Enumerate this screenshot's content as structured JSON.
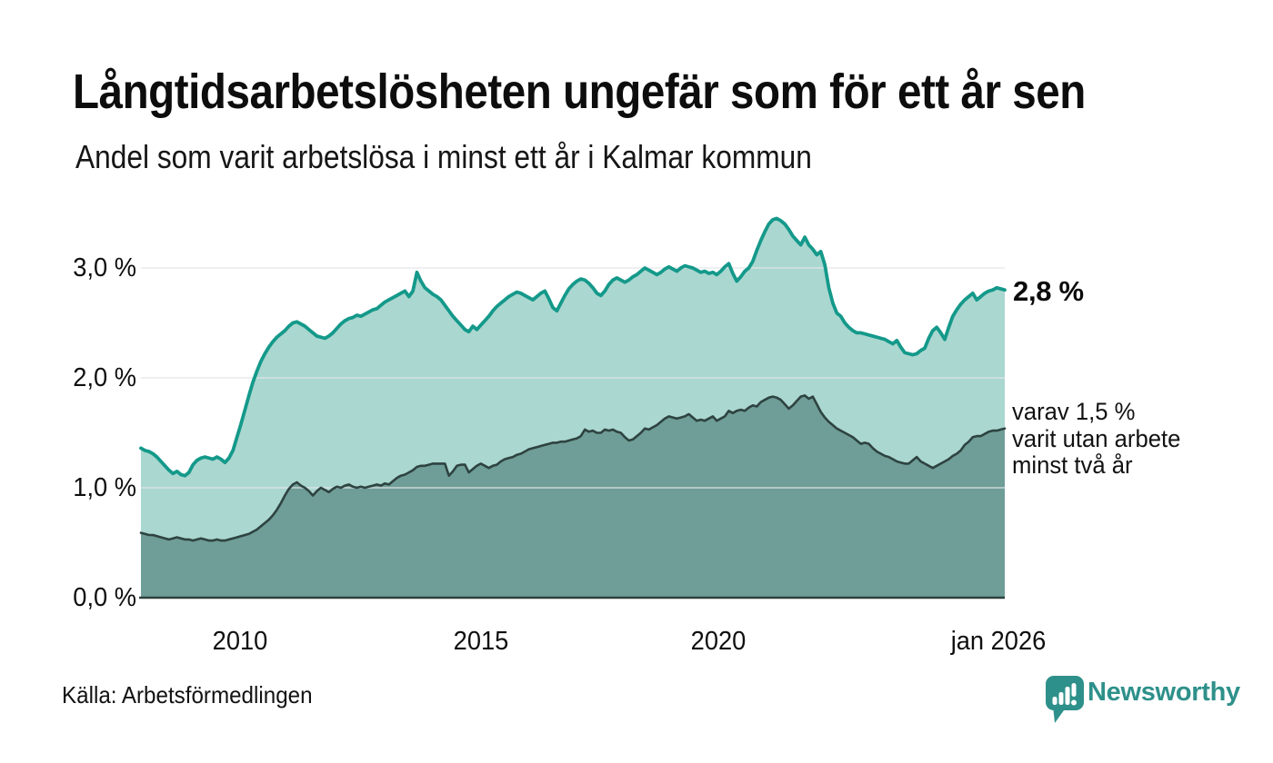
{
  "title": "Långtidsarbetslösheten ungefär som för ett år sen",
  "subtitle": "Andel som varit arbetslösa i minst ett år i Kalmar kommun",
  "source": "Källa: Arbetsförmedlingen",
  "logo": {
    "text": "Newsworthy"
  },
  "annotations": {
    "latest_total": "2,8 %",
    "secondary_line1": "varav 1,5 %",
    "secondary_line2": "varit utan arbete",
    "secondary_line3": "minst två år"
  },
  "axes": {
    "y_ticks": [
      "3,0 %",
      "2,0 %",
      "1,0 %",
      "0,0 %"
    ],
    "x_ticks": [
      "2010",
      "2015",
      "2020",
      "jan 2026"
    ]
  },
  "colors": {
    "line_primary": "#14998a",
    "fill_primary": "#aad7d0",
    "line_secondary": "#2e4340",
    "fill_secondary": "#6f9d97",
    "grid": "#e2e4e8",
    "baseline": "#2e403d",
    "brand": "#2e908a"
  },
  "chart_data": {
    "type": "area",
    "title": "Långtidsarbetslösheten ungefär som för ett år sen",
    "subtitle": "Andel som varit arbetslösa i minst ett år i Kalmar kommun",
    "unit": "%",
    "x_start": "jan 2008",
    "x_end": "jan 2026",
    "frequency": "monthly",
    "ylim": [
      0,
      3.6
    ],
    "grid_values": [
      3.0,
      2.0,
      1.0
    ],
    "x_tick_positions": [
      2010,
      2015,
      2020,
      2026
    ],
    "legend_position": "right-annotations",
    "series": [
      {
        "name": "Arbetslösa minst ett år",
        "last_value_label": "2,8 %",
        "values": [
          1.36,
          1.34,
          1.33,
          1.31,
          1.28,
          1.24,
          1.2,
          1.16,
          1.13,
          1.15,
          1.12,
          1.11,
          1.14,
          1.21,
          1.25,
          1.27,
          1.28,
          1.27,
          1.26,
          1.28,
          1.26,
          1.23,
          1.27,
          1.34,
          1.46,
          1.58,
          1.71,
          1.84,
          1.96,
          2.06,
          2.15,
          2.22,
          2.28,
          2.33,
          2.37,
          2.4,
          2.43,
          2.47,
          2.5,
          2.51,
          2.49,
          2.47,
          2.44,
          2.41,
          2.38,
          2.37,
          2.36,
          2.38,
          2.41,
          2.45,
          2.49,
          2.52,
          2.54,
          2.55,
          2.57,
          2.56,
          2.58,
          2.6,
          2.62,
          2.63,
          2.66,
          2.69,
          2.71,
          2.73,
          2.75,
          2.77,
          2.79,
          2.74,
          2.79,
          2.96,
          2.88,
          2.82,
          2.79,
          2.76,
          2.74,
          2.71,
          2.66,
          2.61,
          2.56,
          2.52,
          2.48,
          2.44,
          2.42,
          2.47,
          2.44,
          2.48,
          2.52,
          2.56,
          2.61,
          2.65,
          2.68,
          2.71,
          2.74,
          2.76,
          2.78,
          2.77,
          2.75,
          2.73,
          2.71,
          2.74,
          2.77,
          2.79,
          2.72,
          2.64,
          2.61,
          2.68,
          2.75,
          2.81,
          2.85,
          2.88,
          2.9,
          2.89,
          2.86,
          2.82,
          2.77,
          2.75,
          2.79,
          2.85,
          2.89,
          2.91,
          2.89,
          2.87,
          2.89,
          2.92,
          2.94,
          2.97,
          3.0,
          2.98,
          2.96,
          2.94,
          2.96,
          2.99,
          3.01,
          2.99,
          2.97,
          3.0,
          3.02,
          3.01,
          3.0,
          2.98,
          2.96,
          2.97,
          2.95,
          2.96,
          2.94,
          2.97,
          3.01,
          3.04,
          2.95,
          2.88,
          2.92,
          2.97,
          3.0,
          3.06,
          3.16,
          3.25,
          3.33,
          3.4,
          3.44,
          3.45,
          3.43,
          3.4,
          3.35,
          3.29,
          3.25,
          3.21,
          3.28,
          3.21,
          3.17,
          3.12,
          3.15,
          3.03,
          2.82,
          2.68,
          2.59,
          2.56,
          2.5,
          2.46,
          2.43,
          2.41,
          2.41,
          2.4,
          2.39,
          2.38,
          2.37,
          2.36,
          2.35,
          2.33,
          2.31,
          2.34,
          2.28,
          2.23,
          2.22,
          2.21,
          2.22,
          2.25,
          2.27,
          2.36,
          2.43,
          2.46,
          2.41,
          2.35,
          2.46,
          2.56,
          2.62,
          2.67,
          2.71,
          2.74,
          2.77,
          2.71,
          2.74,
          2.77,
          2.79,
          2.8,
          2.82,
          2.81,
          2.8
        ]
      },
      {
        "name": "varav utan arbete minst två år",
        "last_value_label": "1,5 %",
        "values": [
          0.59,
          0.58,
          0.57,
          0.57,
          0.56,
          0.55,
          0.54,
          0.53,
          0.54,
          0.55,
          0.54,
          0.53,
          0.53,
          0.52,
          0.53,
          0.54,
          0.53,
          0.52,
          0.52,
          0.53,
          0.52,
          0.52,
          0.53,
          0.54,
          0.55,
          0.56,
          0.57,
          0.58,
          0.6,
          0.62,
          0.65,
          0.68,
          0.71,
          0.75,
          0.8,
          0.86,
          0.93,
          0.99,
          1.03,
          1.05,
          1.02,
          1.0,
          0.97,
          0.93,
          0.97,
          1.0,
          0.98,
          0.96,
          0.99,
          1.01,
          1.0,
          1.02,
          1.03,
          1.01,
          1.0,
          1.01,
          1.0,
          1.01,
          1.02,
          1.03,
          1.02,
          1.04,
          1.03,
          1.06,
          1.09,
          1.11,
          1.12,
          1.14,
          1.16,
          1.19,
          1.2,
          1.2,
          1.21,
          1.22,
          1.22,
          1.22,
          1.22,
          1.11,
          1.15,
          1.2,
          1.21,
          1.21,
          1.14,
          1.17,
          1.2,
          1.22,
          1.2,
          1.18,
          1.2,
          1.21,
          1.24,
          1.26,
          1.27,
          1.28,
          1.3,
          1.31,
          1.33,
          1.35,
          1.36,
          1.37,
          1.38,
          1.39,
          1.4,
          1.41,
          1.41,
          1.42,
          1.42,
          1.43,
          1.44,
          1.45,
          1.47,
          1.53,
          1.51,
          1.52,
          1.5,
          1.5,
          1.53,
          1.52,
          1.53,
          1.51,
          1.5,
          1.46,
          1.43,
          1.44,
          1.47,
          1.5,
          1.54,
          1.53,
          1.55,
          1.57,
          1.6,
          1.63,
          1.65,
          1.64,
          1.63,
          1.64,
          1.65,
          1.67,
          1.64,
          1.61,
          1.62,
          1.61,
          1.63,
          1.65,
          1.61,
          1.63,
          1.65,
          1.7,
          1.68,
          1.7,
          1.71,
          1.7,
          1.73,
          1.75,
          1.74,
          1.78,
          1.8,
          1.82,
          1.83,
          1.82,
          1.8,
          1.76,
          1.72,
          1.75,
          1.79,
          1.83,
          1.84,
          1.81,
          1.83,
          1.76,
          1.69,
          1.64,
          1.6,
          1.57,
          1.54,
          1.52,
          1.5,
          1.48,
          1.46,
          1.43,
          1.4,
          1.41,
          1.4,
          1.36,
          1.33,
          1.31,
          1.29,
          1.28,
          1.26,
          1.24,
          1.23,
          1.22,
          1.22,
          1.25,
          1.28,
          1.24,
          1.22,
          1.2,
          1.18,
          1.2,
          1.22,
          1.24,
          1.26,
          1.29,
          1.31,
          1.34,
          1.39,
          1.42,
          1.46,
          1.47,
          1.47,
          1.49,
          1.51,
          1.52,
          1.52,
          1.53,
          1.54
        ]
      }
    ]
  }
}
